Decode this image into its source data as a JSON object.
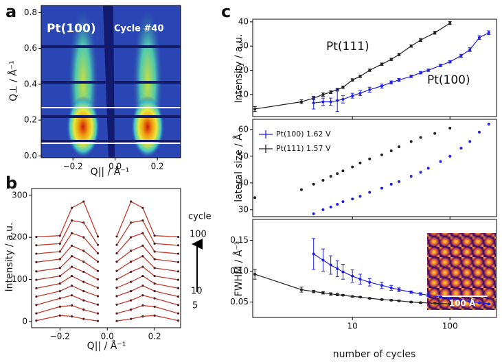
{
  "chart_data": [
    {
      "type": "image",
      "panel_label": "a",
      "annotations": [
        "Pt(100)",
        "Cycle #40"
      ],
      "xlabel": "Q|| / Å⁻¹",
      "ylabel": "Q⊥ / Å⁻¹",
      "xlim": [
        -0.35,
        0.31
      ],
      "xticks": [
        {
          "value": -0.2,
          "label": "−0.2"
        },
        {
          "value": 0,
          "label": "0.0"
        },
        0.2
      ],
      "ylim": [
        -0.01,
        0.84
      ],
      "yticks": [
        {
          "value": 0,
          "label": "0.0"
        },
        0.2,
        0.4,
        0.6,
        0.8
      ]
    },
    {
      "type": "line",
      "panel_label": "b",
      "xlabel": "Q|| / Å⁻¹",
      "ylabel": "Intensity / a.u.",
      "annotations": [
        "cycle",
        "100",
        "10",
        "5"
      ],
      "line_color": "#c0392b",
      "marker_color": "#4a1c1c",
      "xlim": [
        -0.32,
        0.31
      ],
      "xticks": [
        {
          "value": -0.2,
          "label": "−0.2"
        },
        {
          "value": 0,
          "label": "0.0"
        },
        0.2
      ],
      "ylim": [
        -15,
        316
      ],
      "yticks": [
        0,
        100,
        200,
        300
      ],
      "x": [
        -0.3,
        -0.2,
        -0.15,
        -0.1,
        -0.04,
        0,
        0.04,
        0.1,
        0.15,
        0.2,
        0.3
      ],
      "series": [
        {
          "values": [
            2,
            14,
            12,
            6,
            1,
            null,
            1,
            6,
            12,
            14,
            2
          ]
        },
        {
          "values": [
            19,
            35,
            38,
            28,
            19,
            null,
            19,
            28,
            38,
            35,
            19
          ]
        },
        {
          "values": [
            39,
            55,
            62,
            50,
            40,
            null,
            40,
            50,
            62,
            55,
            39
          ]
        },
        {
          "values": [
            59,
            72,
            85,
            72,
            60,
            null,
            60,
            72,
            85,
            72,
            59
          ]
        },
        {
          "values": [
            79,
            90,
            108,
            94,
            80,
            null,
            80,
            94,
            108,
            90,
            79
          ]
        },
        {
          "values": [
            99,
            108,
            130,
            118,
            100,
            null,
            100,
            118,
            130,
            108,
            99
          ]
        },
        {
          "values": [
            119,
            127,
            155,
            142,
            120,
            null,
            120,
            142,
            155,
            127,
            119
          ]
        },
        {
          "values": [
            141,
            148,
            180,
            168,
            142,
            null,
            142,
            168,
            180,
            148,
            141
          ]
        },
        {
          "values": [
            161,
            166,
            210,
            200,
            162,
            null,
            162,
            200,
            210,
            166,
            161
          ]
        },
        {
          "values": [
            181,
            185,
            240,
            235,
            182,
            null,
            182,
            235,
            240,
            185,
            181
          ]
        },
        {
          "values": [
            201,
            204,
            270,
            285,
            202,
            null,
            202,
            285,
            270,
            204,
            201
          ]
        }
      ]
    },
    {
      "type": "line",
      "panel_label": "c",
      "log_x": true,
      "ylabel": "Intensity / a.u.",
      "annotations": [
        "Pt(111)",
        "Pt(100)"
      ],
      "xlim": [
        0.95,
        300
      ],
      "ylim": [
        0.9,
        41.1
      ],
      "yticks": [
        10,
        20,
        30,
        40
      ],
      "series": [
        {
          "color": "#222222",
          "x": [
            1,
            3,
            4,
            5,
            6,
            7,
            8,
            10,
            12,
            15,
            20,
            25,
            30,
            40,
            50,
            70,
            100
          ],
          "values": [
            4,
            7,
            8.5,
            10,
            11,
            12,
            13,
            16,
            17.5,
            20,
            22.5,
            24.5,
            26.5,
            30,
            32.5,
            35.5,
            39.5
          ],
          "errors": [
            1,
            0.8,
            0.7,
            0.7,
            0.6,
            0.6,
            0.5,
            0.5,
            0.5,
            0.5,
            0.5,
            0.5,
            0.5,
            0.5,
            0.6,
            0.6,
            0.6
          ]
        },
        {
          "color": "#1f1fe0",
          "x": [
            4,
            5,
            6,
            7,
            8,
            10,
            12,
            15,
            20,
            25,
            30,
            40,
            50,
            60,
            80,
            100,
            130,
            160,
            200,
            250
          ],
          "values": [
            6.5,
            7,
            7,
            7.5,
            8,
            9.5,
            10.5,
            12,
            13.5,
            15,
            16,
            17.5,
            19,
            20,
            22,
            23.5,
            26,
            28.5,
            33.5,
            35.5
          ],
          "errors": [
            2.5,
            1.5,
            1.5,
            4.5,
            1.5,
            1,
            1,
            1,
            0.8,
            0.6,
            0.6,
            0.5,
            0.5,
            0.5,
            0.5,
            0.5,
            0.6,
            0.8,
            0.8,
            0.8
          ]
        }
      ]
    },
    {
      "type": "line",
      "log_x": true,
      "ylabel": "lateral size / Å",
      "markers_only": true,
      "legend": "upper left",
      "xlim": [
        0.95,
        300
      ],
      "ylim": [
        27.4,
        63.8
      ],
      "yticks": [
        30,
        40,
        50,
        60
      ],
      "series": [
        {
          "name": "Pt(100) 1.62 V",
          "color": "#1f1fe0",
          "x": [
            4,
            5,
            6,
            7,
            8,
            10,
            12,
            15,
            20,
            25,
            30,
            40,
            50,
            60,
            80,
            100,
            130,
            160,
            200,
            250
          ],
          "values": [
            28.5,
            30,
            31,
            32,
            33,
            34,
            35,
            36.5,
            38,
            39.5,
            40.5,
            42.5,
            44,
            45.5,
            48,
            50,
            53,
            55.5,
            59,
            62
          ]
        },
        {
          "name": "Pt(111) 1.57 V",
          "color": "#222222",
          "x": [
            1,
            3,
            4,
            5,
            6,
            7,
            8,
            10,
            12,
            15,
            20,
            25,
            30,
            40,
            50,
            70,
            100
          ],
          "values": [
            34.5,
            37.5,
            39.5,
            41,
            42.5,
            43.5,
            44.5,
            46,
            47.5,
            49,
            50.5,
            52,
            53.5,
            55.5,
            57,
            58.5,
            60.5
          ]
        }
      ]
    },
    {
      "type": "line",
      "log_x": true,
      "xlabel": "number of cycles",
      "ylabel": "FWHM / Å⁻¹",
      "annotations": [
        "100 Å"
      ],
      "xlim": [
        0.95,
        300
      ],
      "xticks": [
        10,
        100
      ],
      "ylim": [
        0.025,
        0.184
      ],
      "yticks": [
        0.05,
        {
          "value": 0.1,
          "label": "0.10"
        },
        0.15
      ],
      "series": [
        {
          "color": "#222222",
          "x": [
            1,
            3,
            4,
            5,
            6,
            7,
            8,
            10,
            12,
            15,
            20,
            25,
            30,
            40,
            50,
            70,
            100
          ],
          "values": [
            0.095,
            0.07,
            0.067,
            0.065,
            0.063,
            0.062,
            0.061,
            0.059,
            0.058,
            0.056,
            0.054,
            0.053,
            0.052,
            0.05,
            0.049,
            0.048,
            0.047
          ],
          "errors": [
            0.008,
            0.004,
            0.002,
            0.002,
            0.002,
            0.002,
            0.001,
            0.001,
            0.001,
            0.001,
            0.001,
            0.001,
            0.001,
            0.001,
            0.001,
            0.001,
            0.001
          ]
        },
        {
          "color": "#1f1fe0",
          "x": [
            4,
            5,
            6,
            7,
            8,
            10,
            12,
            15,
            20,
            25,
            30,
            40,
            50,
            60,
            80,
            100,
            130,
            160,
            200,
            250
          ],
          "values": [
            0.128,
            0.118,
            0.11,
            0.104,
            0.099,
            0.092,
            0.087,
            0.082,
            0.077,
            0.073,
            0.07,
            0.066,
            0.063,
            0.061,
            0.058,
            0.056,
            0.053,
            0.051,
            0.049,
            0.047
          ],
          "errors": [
            0.025,
            0.018,
            0.015,
            0.013,
            0.012,
            0.01,
            0.008,
            0.006,
            0.005,
            0.004,
            0.003,
            0.002,
            0.002,
            0.002,
            0.001,
            0.001,
            0.001,
            0.001,
            0.001,
            0.001
          ]
        }
      ]
    }
  ]
}
